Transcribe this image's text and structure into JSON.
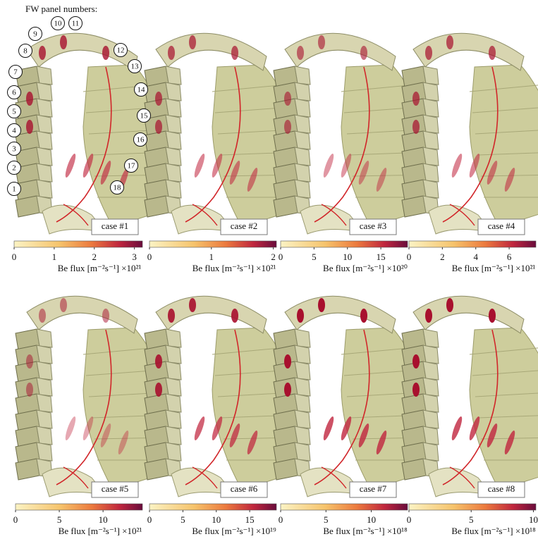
{
  "figure": {
    "heading": "FW panel numbers:",
    "panel_numbers": [
      "1",
      "2",
      "3",
      "4",
      "5",
      "6",
      "7",
      "8",
      "9",
      "10",
      "11",
      "12",
      "13",
      "14",
      "15",
      "16",
      "17",
      "18"
    ],
    "cases": [
      {
        "label": "case #1",
        "colorbar": {
          "range": [
            0,
            3.2
          ],
          "ticks": [
            0,
            1,
            2,
            3
          ],
          "label": "Be flux [m⁻²s⁻¹] ×10²¹"
        }
      },
      {
        "label": "case #2",
        "colorbar": {
          "range": [
            0,
            2.05
          ],
          "ticks": [
            0,
            1,
            2
          ],
          "label": "Be flux [m⁻²s⁻¹] ×10²¹"
        }
      },
      {
        "label": "case #3",
        "colorbar": {
          "range": [
            0,
            19
          ],
          "ticks": [
            0,
            5,
            10,
            15
          ],
          "label": "Be flux [m⁻²s⁻¹] ×10²⁰"
        }
      },
      {
        "label": "case #4",
        "colorbar": {
          "range": [
            0,
            7.6
          ],
          "ticks": [
            0,
            2,
            4,
            6
          ],
          "label": "Be flux [m⁻²s⁻¹] ×10²¹"
        }
      },
      {
        "label": "case #5",
        "colorbar": {
          "range": [
            0,
            14.5
          ],
          "ticks": [
            0,
            5,
            10
          ],
          "label": "Be flux [m⁻²s⁻¹] ×10²¹"
        }
      },
      {
        "label": "case #6",
        "colorbar": {
          "range": [
            0,
            19
          ],
          "ticks": [
            0,
            5,
            10,
            15
          ],
          "label": "Be flux [m⁻²s⁻¹] ×10¹⁹"
        }
      },
      {
        "label": "case #7",
        "colorbar": {
          "range": [
            0,
            14
          ],
          "ticks": [
            0,
            5,
            10
          ],
          "label": "Be flux [m⁻²s⁻¹] ×10¹⁸"
        }
      },
      {
        "label": "case #8",
        "colorbar": {
          "range": [
            0,
            10.2
          ],
          "ticks": [
            0,
            5,
            10
          ],
          "label": "Be flux [m⁻²s⁻¹] ×10¹⁸"
        }
      }
    ]
  }
}
